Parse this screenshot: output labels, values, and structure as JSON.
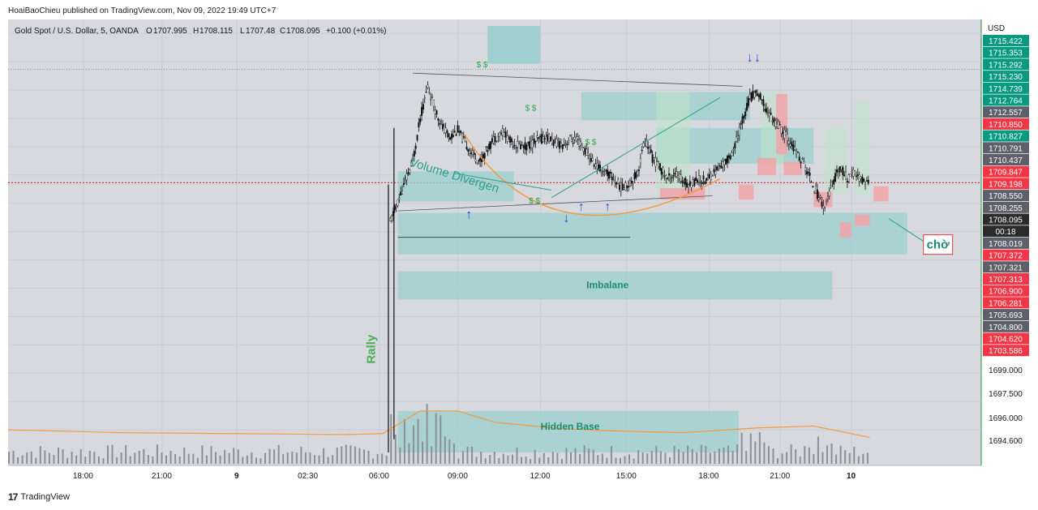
{
  "publisher_line": "HoaiBaoChieu published on TradingView.com, Nov 09, 2022 19:49 UTC+7",
  "footer": {
    "logo_text": "17",
    "brand": "TradingView"
  },
  "header": {
    "symbol": "Gold Spot / U.S. Dollar, 5, OANDA",
    "open_label": "O",
    "open": "1707.995",
    "high_label": "H",
    "high": "1708.115",
    "low_label": "L",
    "low": "1707.48",
    "close_label": "C",
    "close": "1708.095",
    "change": "+0.100 (+0.01%)"
  },
  "colors": {
    "zone": "#9ccfcf",
    "zone_stroke": "#7fbfbf",
    "red_box": "#f0a3a8",
    "green_label": "#089981",
    "red_label": "#f23645",
    "grey_label": "#5d606b",
    "curve": "#f29a3c",
    "arrow": "#1e4fd8",
    "annot": "#2aa084"
  },
  "chart_data": {
    "type": "candlestick",
    "symbol": "Gold Spot / U.S. Dollar",
    "interval": "5",
    "currency_label": "USD",
    "x_ticks": [
      "18:00",
      "21:00",
      "9",
      "02:30",
      "06:00",
      "09:00",
      "12:00",
      "15:00",
      "18:00",
      "21:00",
      "10"
    ],
    "y_ticks": [
      "1699.000",
      "1697.500",
      "1696.000",
      "1694.600"
    ],
    "y_range": [
      1693.2,
      1716.4
    ],
    "price_labels": [
      {
        "value": "1715.422",
        "color": "green"
      },
      {
        "value": "1715.353",
        "color": "green"
      },
      {
        "value": "1715.292",
        "color": "green"
      },
      {
        "value": "1715.230",
        "color": "green"
      },
      {
        "value": "1714.739",
        "color": "green"
      },
      {
        "value": "1712.764",
        "color": "green"
      },
      {
        "value": "1712.557",
        "color": "grey"
      },
      {
        "value": "1710.850",
        "color": "red"
      },
      {
        "value": "1710.827",
        "color": "green"
      },
      {
        "value": "1710.791",
        "color": "grey"
      },
      {
        "value": "1710.437",
        "color": "grey"
      },
      {
        "value": "1709.847",
        "color": "red"
      },
      {
        "value": "1709.198",
        "color": "red"
      },
      {
        "value": "1708.550",
        "color": "grey"
      },
      {
        "value": "1708.255",
        "color": "grey"
      },
      {
        "value": "1708.095",
        "color": "dark"
      },
      {
        "value": "00:18",
        "color": "dark"
      },
      {
        "value": "1708.019",
        "color": "grey"
      },
      {
        "value": "1707.372",
        "color": "red"
      },
      {
        "value": "1707.321",
        "color": "grey"
      },
      {
        "value": "1707.313",
        "color": "red"
      },
      {
        "value": "1706.900",
        "color": "red"
      },
      {
        "value": "1706.281",
        "color": "red"
      },
      {
        "value": "1705.693",
        "color": "grey"
      },
      {
        "value": "1704.800",
        "color": "grey"
      },
      {
        "value": "1704.620",
        "color": "red"
      },
      {
        "value": "1703.586",
        "color": "red"
      }
    ],
    "price_path": [
      [
        1702,
        1706.0
      ],
      [
        1708,
        1709.2
      ],
      [
        1710,
        1711.5
      ],
      [
        1712,
        1713.2
      ],
      [
        1714,
        1712.0
      ],
      [
        1716,
        1711.0
      ],
      [
        1718,
        1710.5
      ],
      [
        1720,
        1710.9
      ],
      [
        1722,
        1710.2
      ],
      [
        1724,
        1709.6
      ],
      [
        1726,
        1709.2
      ],
      [
        1728,
        1709.9
      ],
      [
        1730,
        1710.5
      ],
      [
        1732,
        1710.8
      ],
      [
        1734,
        1710.3
      ],
      [
        1736,
        1710.1
      ],
      [
        1738,
        1710.0
      ],
      [
        1740,
        1710.2
      ],
      [
        1742,
        1710.4
      ],
      [
        1744,
        1710.5
      ],
      [
        1746,
        1710.2
      ],
      [
        1748,
        1710.1
      ],
      [
        1750,
        1710.4
      ],
      [
        1752,
        1710.3
      ],
      [
        1754,
        1709.8
      ],
      [
        1756,
        1709.2
      ],
      [
        1758,
        1708.8
      ],
      [
        1760,
        1708.6
      ],
      [
        1762,
        1708.2
      ],
      [
        1764,
        1707.8
      ],
      [
        1766,
        1708.1
      ],
      [
        1768,
        1708.6
      ],
      [
        1770,
        1710.4
      ],
      [
        1772,
        1709.4
      ],
      [
        1774,
        1708.9
      ],
      [
        1776,
        1708.3
      ],
      [
        1778,
        1708.6
      ],
      [
        1780,
        1708.2
      ],
      [
        1782,
        1708.0
      ],
      [
        1784,
        1708.3
      ],
      [
        1786,
        1708.2
      ],
      [
        1788,
        1708.6
      ],
      [
        1790,
        1708.9
      ],
      [
        1792,
        1709.3
      ],
      [
        1794,
        1710.0
      ],
      [
        1796,
        1711.4
      ],
      [
        1798,
        1712.6
      ],
      [
        1800,
        1712.9
      ],
      [
        1802,
        1712.1
      ],
      [
        1804,
        1711.5
      ],
      [
        1806,
        1711.0
      ],
      [
        1808,
        1710.5
      ],
      [
        1810,
        1709.8
      ],
      [
        1812,
        1709.2
      ],
      [
        1814,
        1708.4
      ],
      [
        1816,
        1707.5
      ],
      [
        1818,
        1706.8
      ],
      [
        1820,
        1708.0
      ],
      [
        1822,
        1708.9
      ],
      [
        1824,
        1708.3
      ],
      [
        1826,
        1708.6
      ],
      [
        1828,
        1708.2
      ],
      [
        1830,
        1708.1
      ]
    ],
    "volume_bars": {
      "start": 1600,
      "end": 1830,
      "step": 1.2
    },
    "volume_ma": [
      [
        1600,
        1695.0
      ],
      [
        1630,
        1694.85
      ],
      [
        1660,
        1694.8
      ],
      [
        1690,
        1694.75
      ],
      [
        1700,
        1694.8
      ],
      [
        1710,
        1696.0
      ],
      [
        1720,
        1696.0
      ],
      [
        1730,
        1695.4
      ],
      [
        1745,
        1695.1
      ],
      [
        1760,
        1694.95
      ],
      [
        1780,
        1694.85
      ],
      [
        1800,
        1695.1
      ],
      [
        1815,
        1695.2
      ],
      [
        1830,
        1694.6
      ]
    ],
    "zones": [
      {
        "id": "top_zone",
        "x1": 1753,
        "x2": 1798,
        "y1": 1712.9,
        "y2": 1711.4
      },
      {
        "id": "mid_zone",
        "x1": 1773,
        "x2": 1815,
        "y1": 1711.0,
        "y2": 1709.1
      },
      {
        "id": "left_zone",
        "x1": 1704,
        "x2": 1735,
        "y1": 1708.7,
        "y2": 1707.1
      },
      {
        "id": "big_zone",
        "x1": 1704,
        "x2": 1840,
        "y1": 1706.5,
        "y2": 1704.3
      },
      {
        "id": "imbalance_zone",
        "x1": 1704,
        "x2": 1820,
        "y1": 1703.4,
        "y2": 1701.9
      },
      {
        "id": "hidden_base_zone",
        "x1": 1704,
        "x2": 1795,
        "y1": 1696.0,
        "y2": 1693.8
      },
      {
        "id": "top_box",
        "x1": 1728,
        "x2": 1742,
        "y1": 1716.4,
        "y2": 1714.4
      }
    ],
    "annotations": {
      "volume_divergence": "Volume Divergen",
      "imbalance": "Imbalane",
      "hidden_base": "Hidden Base",
      "rally": "Rally",
      "waiting": "chờ",
      "dollar_signs": "$ $"
    },
    "last_price": 1708.095,
    "grid": true
  }
}
